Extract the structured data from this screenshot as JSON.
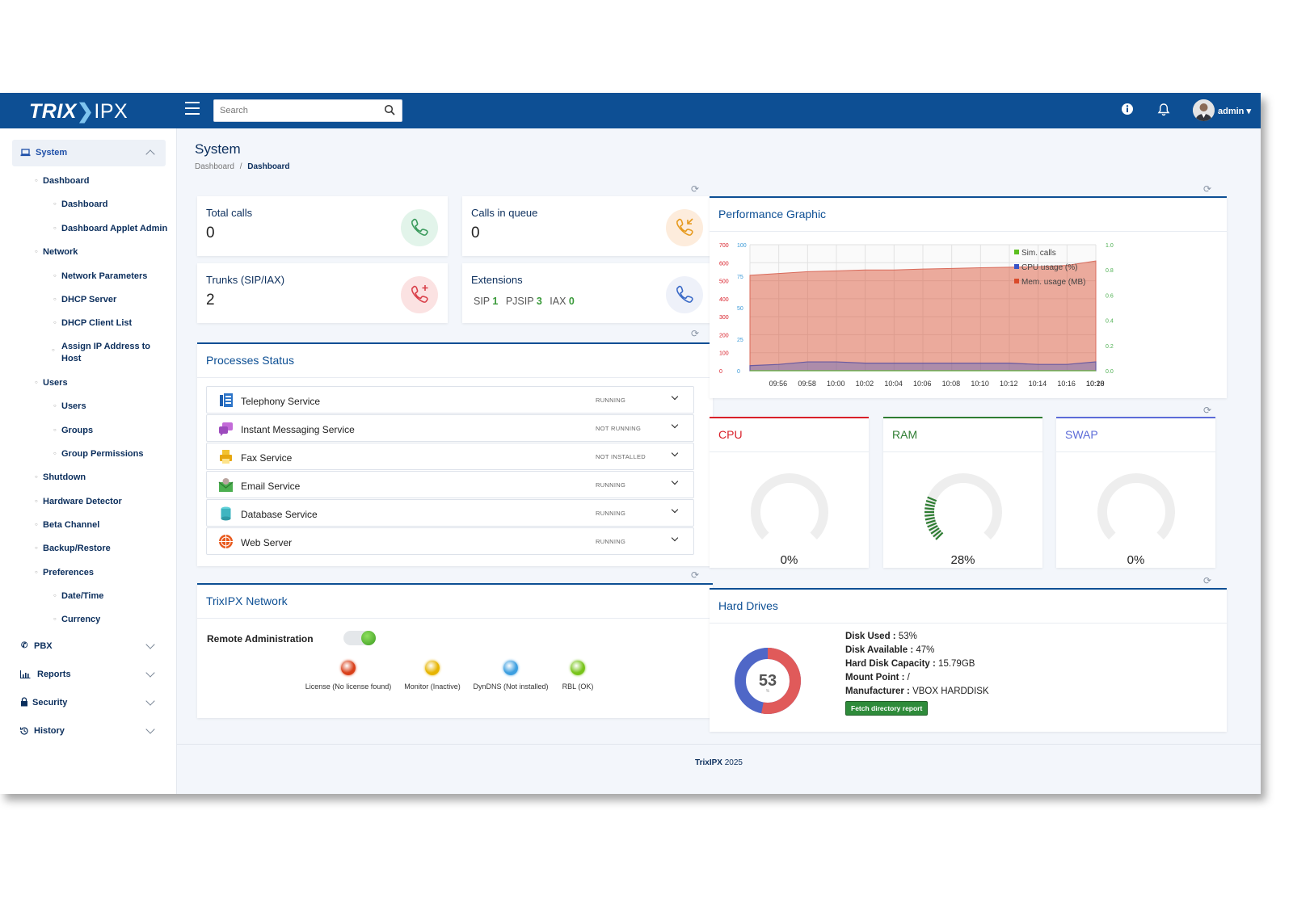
{
  "app": {
    "logo_main": "TRIX",
    "logo_chev": "❯",
    "logo_suffix": "IPX",
    "user": "admin"
  },
  "search": {
    "placeholder": "Search"
  },
  "sidebar": {
    "system": "System",
    "items": [
      {
        "label": "Dashboard"
      },
      {
        "label": "Dashboard"
      },
      {
        "label": "Dashboard Applet Admin"
      },
      {
        "label": "Network"
      },
      {
        "label": "Network Parameters"
      },
      {
        "label": "DHCP Server"
      },
      {
        "label": "DHCP Client List"
      },
      {
        "label": "Assign IP Address to"
      },
      {
        "label": "Host"
      },
      {
        "label": "Users"
      },
      {
        "label": "Users"
      },
      {
        "label": "Groups"
      },
      {
        "label": "Group Permissions"
      },
      {
        "label": "Shutdown"
      },
      {
        "label": "Hardware Detector"
      },
      {
        "label": "Beta Channel"
      },
      {
        "label": "Backup/Restore"
      },
      {
        "label": "Preferences"
      },
      {
        "label": "Date/Time"
      },
      {
        "label": "Currency"
      }
    ],
    "sections": [
      "PBX",
      "Reports",
      "Security",
      "History"
    ]
  },
  "page": {
    "title": "System",
    "crumb_root": "Dashboard",
    "crumb_sep": "/",
    "crumb_current": "Dashboard"
  },
  "stats": {
    "total_calls": {
      "label": "Total calls",
      "value": "0"
    },
    "calls_queue": {
      "label": "Calls in queue",
      "value": "0"
    },
    "trunks": {
      "label": "Trunks (SIP/IAX)",
      "value": "2"
    },
    "extensions": {
      "label": "Extensions",
      "sip_label": "SIP",
      "sip": "1",
      "pjsip_label": "PJSIP",
      "pjsip": "3",
      "iax_label": "IAX",
      "iax": "0"
    }
  },
  "processes": {
    "title": "Processes Status",
    "items": [
      {
        "name": "Telephony Service",
        "status": "RUNNING"
      },
      {
        "name": "Instant Messaging Service",
        "status": "NOT RUNNING"
      },
      {
        "name": "Fax Service",
        "status": "NOT INSTALLED"
      },
      {
        "name": "Email Service",
        "status": "RUNNING"
      },
      {
        "name": "Database Service",
        "status": "RUNNING"
      },
      {
        "name": "Web Server",
        "status": "RUNNING"
      }
    ]
  },
  "network": {
    "title": "TrixIPX Network",
    "remote_admin": "Remote Administration",
    "remote_admin_on": true,
    "indicators": [
      {
        "label": "License (No license found)",
        "color": "#d9401a"
      },
      {
        "label": "Monitor (Inactive)",
        "color": "#e6b400"
      },
      {
        "label": "DynDNS (Not installed)",
        "color": "#3d9fe0"
      },
      {
        "label": "RBL (OK)",
        "color": "#78c41a"
      }
    ]
  },
  "chart_data": {
    "type": "area",
    "title": "Performance Graphic",
    "x": [
      "09:56",
      "09:58",
      "10:00",
      "10:02",
      "10:04",
      "10:06",
      "10:08",
      "10:10",
      "10:12",
      "10:14",
      "10:16",
      "10:18",
      "10:20"
    ],
    "y_left_ticks": [
      "700",
      "600",
      "500",
      "400",
      "300",
      "200",
      "100",
      "0"
    ],
    "y_mid_ticks": [
      "100",
      "75",
      "50",
      "25",
      "0"
    ],
    "y_right_ticks": [
      "1.0",
      "0.8",
      "0.6",
      "0.4",
      "0.2",
      "0.0"
    ],
    "ylim_mem": [
      0,
      700
    ],
    "ylim_cpu": [
      0,
      100
    ],
    "ylim_calls": [
      0,
      1.0
    ],
    "series": [
      {
        "name": "Sim. calls",
        "color": "#5cbf1f",
        "values": [
          0,
          0,
          0,
          0,
          0,
          0,
          0,
          0,
          0,
          0,
          0,
          0,
          0
        ]
      },
      {
        "name": "CPU usage (%)",
        "color": "#3a55c7",
        "values": [
          4,
          5,
          7,
          7,
          6,
          6,
          6,
          6,
          6,
          6,
          5,
          5,
          7
        ]
      },
      {
        "name": "Mem. usage (MB)",
        "color": "#d94a2a",
        "values": [
          530,
          540,
          550,
          555,
          560,
          560,
          565,
          568,
          572,
          575,
          578,
          585,
          610
        ]
      }
    ],
    "legend": "top-right"
  },
  "gauges": [
    {
      "title": "CPU",
      "value": 0,
      "text": "0%",
      "color": "#d9202a"
    },
    {
      "title": "RAM",
      "value": 28,
      "text": "28%",
      "color": "#2e7d32"
    },
    {
      "title": "SWAP",
      "value": 0,
      "text": "0%",
      "color": "#5c6bd8"
    }
  ],
  "hard_drives": {
    "title": "Hard Drives",
    "used_pct": 53,
    "donut_center": "53",
    "donut_unit": "%",
    "lines": [
      {
        "k": "Disk Used :",
        "v": " 53%"
      },
      {
        "k": "Disk Available :",
        "v": " 47%"
      },
      {
        "k": "Hard Disk Capacity :",
        "v": " 15.79GB"
      },
      {
        "k": "Mount Point :",
        "v": " /"
      },
      {
        "k": "Manufacturer :",
        "v": " VBOX HARDDISK"
      }
    ],
    "button": "Fetch directory report",
    "used_color": "#e05a5a",
    "free_color": "#4f67c7"
  },
  "footer": {
    "brand": "TrixIPX",
    "year": "2025"
  }
}
